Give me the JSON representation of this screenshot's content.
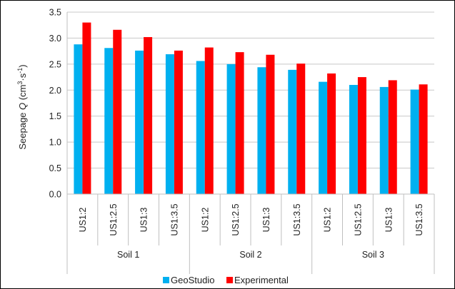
{
  "chart_data": {
    "type": "bar",
    "groups": [
      {
        "label": "Soil 1",
        "categories": [
          "US1:2",
          "US1:2.5",
          "US1:3",
          "US1:3.5"
        ]
      },
      {
        "label": "Soil 2",
        "categories": [
          "US1:2",
          "US1:2.5",
          "US1:3",
          "US1:3.5"
        ]
      },
      {
        "label": "Soil 3",
        "categories": [
          "US1:2",
          "US1:2.5",
          "US1:3",
          "US1:3.5"
        ]
      }
    ],
    "series": [
      {
        "name": "GeoStudio",
        "color": "#00b0f0",
        "values": [
          2.88,
          2.81,
          2.76,
          2.69,
          2.56,
          2.5,
          2.44,
          2.39,
          2.16,
          2.1,
          2.06,
          2.01
        ]
      },
      {
        "name": "Experimental",
        "color": "#ff0000",
        "values": [
          3.3,
          3.16,
          3.02,
          2.76,
          2.82,
          2.73,
          2.68,
          2.51,
          2.32,
          2.25,
          2.19,
          2.11
        ]
      }
    ],
    "ylabel_prefix": "Seepage ",
    "ylabel_var": "Q",
    "ylabel_units_open": " (cm",
    "ylabel_sup1": "3",
    "ylabel_mid": "·s",
    "ylabel_sup2": "-1",
    "ylabel_close": ")",
    "ylim": [
      0,
      3.5
    ],
    "yticks": [
      "0.0",
      "0.5",
      "1.0",
      "1.5",
      "2.0",
      "2.5",
      "3.0",
      "3.5"
    ],
    "grid": true,
    "legend_position": "bottom"
  }
}
